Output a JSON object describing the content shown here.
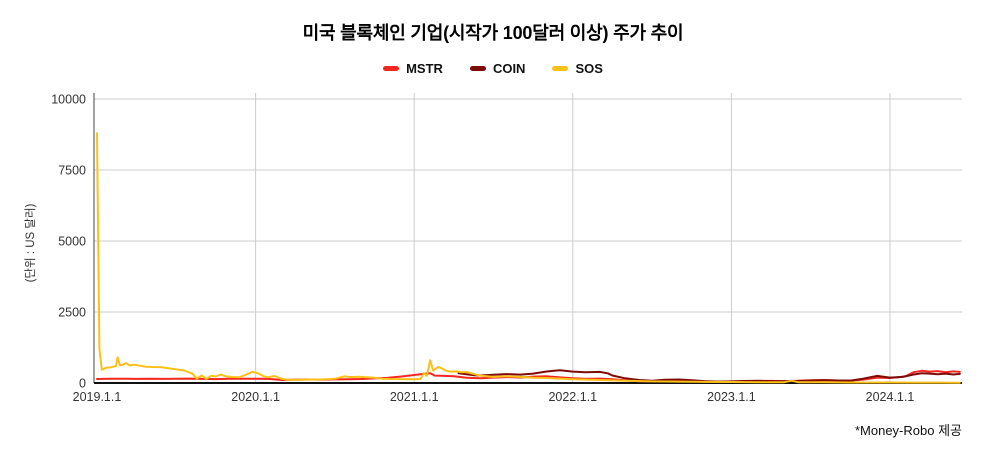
{
  "title": "미국 블록체인 기업(시작가 100달러 이상) 주가 추이",
  "y_axis_label": "(단위 : US 달러)",
  "attribution": "*Money-Robo 제공",
  "colors": {
    "grid": "#cccccc",
    "axis": "#111111",
    "tick_text": "#333333",
    "mstr": "#f4271f",
    "coin": "#7e0c06",
    "sos": "#fdc019"
  },
  "chart_data": {
    "type": "line",
    "title": "미국 블록체인 기업(시작가 100달러 이상) 주가 추이",
    "xlabel": "",
    "ylabel": "(단위 : US 달러)",
    "x_range": [
      2019.0,
      2024.46
    ],
    "y_range": [
      0,
      10000
    ],
    "grid": true,
    "legend_position": "top",
    "x_ticks": [
      {
        "value": 2019,
        "label": "2019.1.1"
      },
      {
        "value": 2020,
        "label": "2020.1.1"
      },
      {
        "value": 2021,
        "label": "2021.1.1"
      },
      {
        "value": 2022,
        "label": "2022.1.1"
      },
      {
        "value": 2023,
        "label": "2023.1.1"
      },
      {
        "value": 2024,
        "label": "2024.1.1"
      }
    ],
    "y_ticks": [
      {
        "value": 0,
        "label": "0"
      },
      {
        "value": 2500,
        "label": "2500"
      },
      {
        "value": 5000,
        "label": "5000"
      },
      {
        "value": 7500,
        "label": "7500"
      },
      {
        "value": 10000,
        "label": "10000"
      }
    ],
    "series": [
      {
        "name": "MSTR",
        "color": "#f4271f",
        "points": [
          [
            2019.0,
            140
          ],
          [
            2019.08,
            150
          ],
          [
            2019.17,
            153
          ],
          [
            2019.25,
            146
          ],
          [
            2019.33,
            151
          ],
          [
            2019.42,
            143
          ],
          [
            2019.5,
            149
          ],
          [
            2019.58,
            156
          ],
          [
            2019.67,
            144
          ],
          [
            2019.75,
            139
          ],
          [
            2019.83,
            149
          ],
          [
            2019.92,
            153
          ],
          [
            2020.0,
            151
          ],
          [
            2020.08,
            143
          ],
          [
            2020.17,
            106
          ],
          [
            2020.25,
            119
          ],
          [
            2020.33,
            123
          ],
          [
            2020.42,
            119
          ],
          [
            2020.5,
            125
          ],
          [
            2020.58,
            133
          ],
          [
            2020.67,
            141
          ],
          [
            2020.75,
            163
          ],
          [
            2020.83,
            181
          ],
          [
            2020.92,
            230
          ],
          [
            2021.0,
            280
          ],
          [
            2021.06,
            320
          ],
          [
            2021.1,
            345
          ],
          [
            2021.13,
            260
          ],
          [
            2021.17,
            258
          ],
          [
            2021.25,
            238
          ],
          [
            2021.33,
            188
          ],
          [
            2021.42,
            168
          ],
          [
            2021.5,
            190
          ],
          [
            2021.58,
            208
          ],
          [
            2021.67,
            195
          ],
          [
            2021.75,
            225
          ],
          [
            2021.83,
            235
          ],
          [
            2021.92,
            198
          ],
          [
            2022.0,
            168
          ],
          [
            2022.08,
            148
          ],
          [
            2022.17,
            155
          ],
          [
            2022.25,
            130
          ],
          [
            2022.33,
            95
          ],
          [
            2022.42,
            65
          ],
          [
            2022.5,
            60
          ],
          [
            2022.58,
            78
          ],
          [
            2022.67,
            74
          ],
          [
            2022.75,
            64
          ],
          [
            2022.83,
            58
          ],
          [
            2022.92,
            46
          ],
          [
            2023.0,
            48
          ],
          [
            2023.08,
            64
          ],
          [
            2023.17,
            68
          ],
          [
            2023.25,
            74
          ],
          [
            2023.33,
            68
          ],
          [
            2023.42,
            76
          ],
          [
            2023.5,
            94
          ],
          [
            2023.58,
            104
          ],
          [
            2023.67,
            88
          ],
          [
            2023.75,
            84
          ],
          [
            2023.83,
            120
          ],
          [
            2023.92,
            190
          ],
          [
            2024.0,
            175
          ],
          [
            2024.05,
            200
          ],
          [
            2024.1,
            240
          ],
          [
            2024.15,
            380
          ],
          [
            2024.2,
            430
          ],
          [
            2024.25,
            400
          ],
          [
            2024.3,
            420
          ],
          [
            2024.35,
            380
          ],
          [
            2024.4,
            410
          ],
          [
            2024.44,
            390
          ]
        ]
      },
      {
        "name": "COIN",
        "color": "#7e0c06",
        "points": [
          [
            2021.28,
            342
          ],
          [
            2021.33,
            305
          ],
          [
            2021.38,
            272
          ],
          [
            2021.42,
            265
          ],
          [
            2021.5,
            288
          ],
          [
            2021.58,
            312
          ],
          [
            2021.67,
            295
          ],
          [
            2021.75,
            330
          ],
          [
            2021.83,
            400
          ],
          [
            2021.88,
            430
          ],
          [
            2021.92,
            450
          ],
          [
            2022.0,
            400
          ],
          [
            2022.08,
            380
          ],
          [
            2022.17,
            390
          ],
          [
            2022.22,
            340
          ],
          [
            2022.25,
            265
          ],
          [
            2022.33,
            165
          ],
          [
            2022.42,
            105
          ],
          [
            2022.5,
            82
          ],
          [
            2022.58,
            112
          ],
          [
            2022.67,
            122
          ],
          [
            2022.75,
            96
          ],
          [
            2022.83,
            66
          ],
          [
            2022.92,
            50
          ],
          [
            2023.0,
            58
          ],
          [
            2023.08,
            72
          ],
          [
            2023.17,
            76
          ],
          [
            2023.25,
            68
          ],
          [
            2023.33,
            64
          ],
          [
            2023.42,
            72
          ],
          [
            2023.5,
            86
          ],
          [
            2023.58,
            100
          ],
          [
            2023.67,
            88
          ],
          [
            2023.75,
            84
          ],
          [
            2023.83,
            150
          ],
          [
            2023.92,
            250
          ],
          [
            2024.0,
            190
          ],
          [
            2024.08,
            215
          ],
          [
            2024.15,
            300
          ],
          [
            2024.2,
            340
          ],
          [
            2024.25,
            330
          ],
          [
            2024.3,
            310
          ],
          [
            2024.35,
            330
          ],
          [
            2024.4,
            300
          ],
          [
            2024.44,
            320
          ]
        ]
      },
      {
        "name": "SOS",
        "color": "#fdc019",
        "points": [
          [
            2019.0,
            8800
          ],
          [
            2019.015,
            1200
          ],
          [
            2019.03,
            470
          ],
          [
            2019.06,
            540
          ],
          [
            2019.09,
            555
          ],
          [
            2019.12,
            600
          ],
          [
            2019.13,
            905
          ],
          [
            2019.145,
            620
          ],
          [
            2019.165,
            650
          ],
          [
            2019.185,
            700
          ],
          [
            2019.205,
            620
          ],
          [
            2019.235,
            645
          ],
          [
            2019.27,
            610
          ],
          [
            2019.31,
            575
          ],
          [
            2019.35,
            565
          ],
          [
            2019.4,
            560
          ],
          [
            2019.45,
            520
          ],
          [
            2019.5,
            480
          ],
          [
            2019.55,
            440
          ],
          [
            2019.6,
            330
          ],
          [
            2019.63,
            160
          ],
          [
            2019.66,
            265
          ],
          [
            2019.69,
            145
          ],
          [
            2019.72,
            255
          ],
          [
            2019.75,
            230
          ],
          [
            2019.78,
            300
          ],
          [
            2019.81,
            235
          ],
          [
            2019.85,
            210
          ],
          [
            2019.9,
            205
          ],
          [
            2019.95,
            320
          ],
          [
            2019.98,
            395
          ],
          [
            2020.02,
            330
          ],
          [
            2020.05,
            235
          ],
          [
            2020.08,
            205
          ],
          [
            2020.12,
            245
          ],
          [
            2020.16,
            155
          ],
          [
            2020.2,
            115
          ],
          [
            2020.25,
            108
          ],
          [
            2020.33,
            120
          ],
          [
            2020.42,
            128
          ],
          [
            2020.5,
            148
          ],
          [
            2020.56,
            232
          ],
          [
            2020.6,
            208
          ],
          [
            2020.65,
            220
          ],
          [
            2020.7,
            202
          ],
          [
            2020.75,
            188
          ],
          [
            2020.8,
            152
          ],
          [
            2020.85,
            142
          ],
          [
            2020.92,
            136
          ],
          [
            2021.0,
            130
          ],
          [
            2021.04,
            140
          ],
          [
            2021.06,
            345
          ],
          [
            2021.08,
            255
          ],
          [
            2021.1,
            800
          ],
          [
            2021.12,
            435
          ],
          [
            2021.15,
            565
          ],
          [
            2021.17,
            525
          ],
          [
            2021.2,
            435
          ],
          [
            2021.23,
            400
          ],
          [
            2021.27,
            405
          ],
          [
            2021.3,
            382
          ],
          [
            2021.33,
            388
          ],
          [
            2021.38,
            312
          ],
          [
            2021.42,
            255
          ],
          [
            2021.5,
            215
          ],
          [
            2021.58,
            235
          ],
          [
            2021.67,
            215
          ],
          [
            2021.75,
            185
          ],
          [
            2021.83,
            175
          ],
          [
            2021.92,
            155
          ],
          [
            2022.0,
            135
          ],
          [
            2022.17,
            105
          ],
          [
            2022.33,
            78
          ],
          [
            2022.5,
            58
          ],
          [
            2022.67,
            48
          ],
          [
            2022.83,
            40
          ],
          [
            2023.0,
            34
          ],
          [
            2023.17,
            29
          ],
          [
            2023.33,
            26
          ],
          [
            2023.38,
            80
          ],
          [
            2023.42,
            27
          ],
          [
            2023.58,
            23
          ],
          [
            2023.75,
            19
          ],
          [
            2024.0,
            16
          ],
          [
            2024.17,
            14
          ],
          [
            2024.33,
            13
          ],
          [
            2024.44,
            12
          ]
        ]
      }
    ]
  }
}
